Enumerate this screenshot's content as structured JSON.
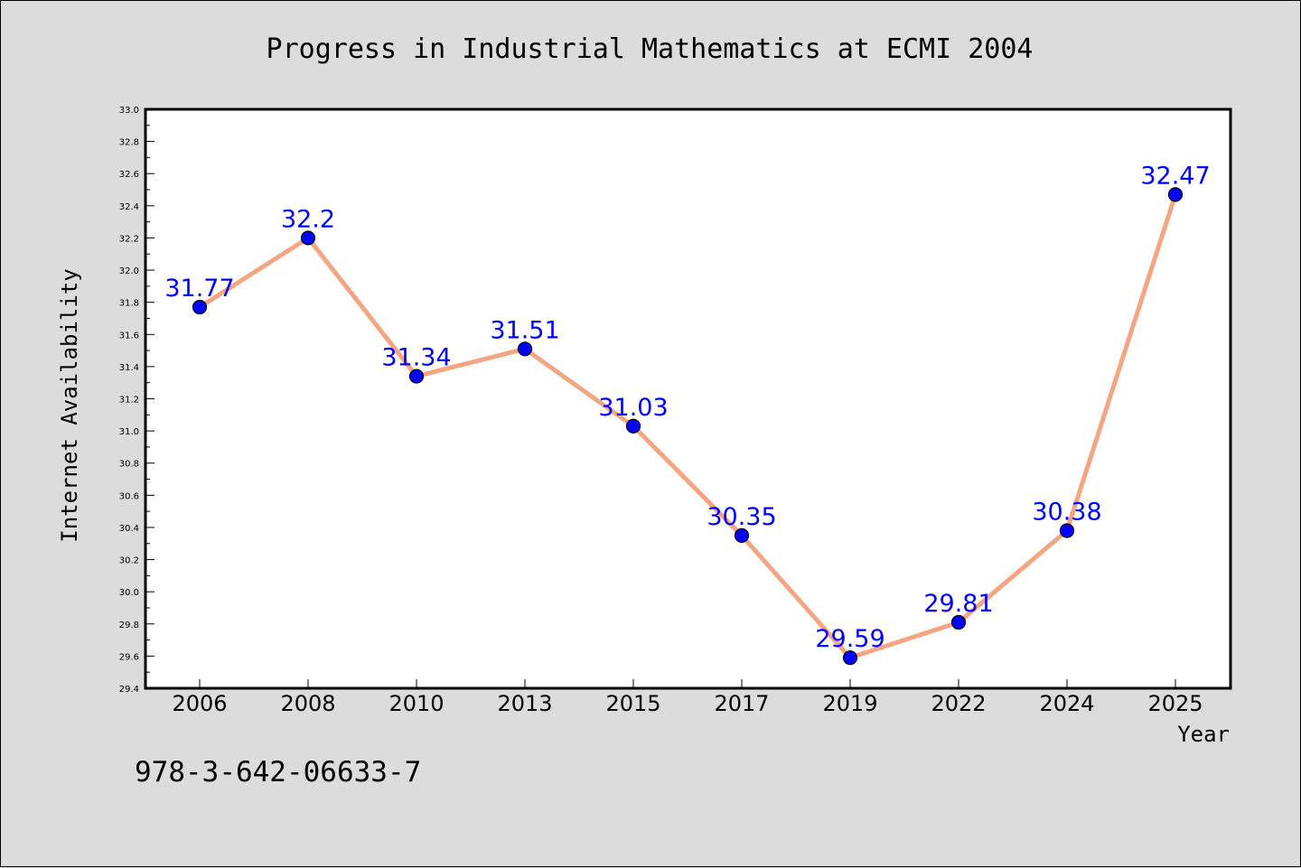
{
  "chart_data": {
    "type": "line",
    "title": "Progress in Industrial Mathematics at ECMI 2004",
    "xlabel": "Year",
    "ylabel": "Internet Availability",
    "categories": [
      "2006",
      "2008",
      "2010",
      "2013",
      "2015",
      "2017",
      "2019",
      "2022",
      "2024",
      "2025"
    ],
    "series": [
      {
        "values": [
          31.77,
          32.2,
          31.34,
          31.51,
          31.03,
          30.35,
          29.59,
          29.81,
          30.38,
          32.47
        ],
        "labels": [
          "31.77",
          "32.2",
          "31.34",
          "31.51",
          "31.03",
          "30.35",
          "29.59",
          "29.81",
          "30.38",
          "32.47"
        ]
      }
    ],
    "ylim": [
      29.4,
      33.0
    ],
    "ytick_labels": [
      "29.4",
      "29.6",
      "29.8",
      "30.0",
      "30.2",
      "30.4",
      "30.6",
      "30.8",
      "31.0",
      "31.2",
      "31.4",
      "31.6",
      "31.8",
      "32.0",
      "32.2",
      "32.4",
      "32.6",
      "32.8",
      "33.0"
    ],
    "grid": false,
    "legend": "none",
    "colors": {
      "line": "#f4a582",
      "marker": "#0000ff",
      "data_label": "#0000ff",
      "plot_background": "#ffffff",
      "figure_background": "#dcdcdc"
    }
  },
  "footnote": "978-3-642-06633-7"
}
